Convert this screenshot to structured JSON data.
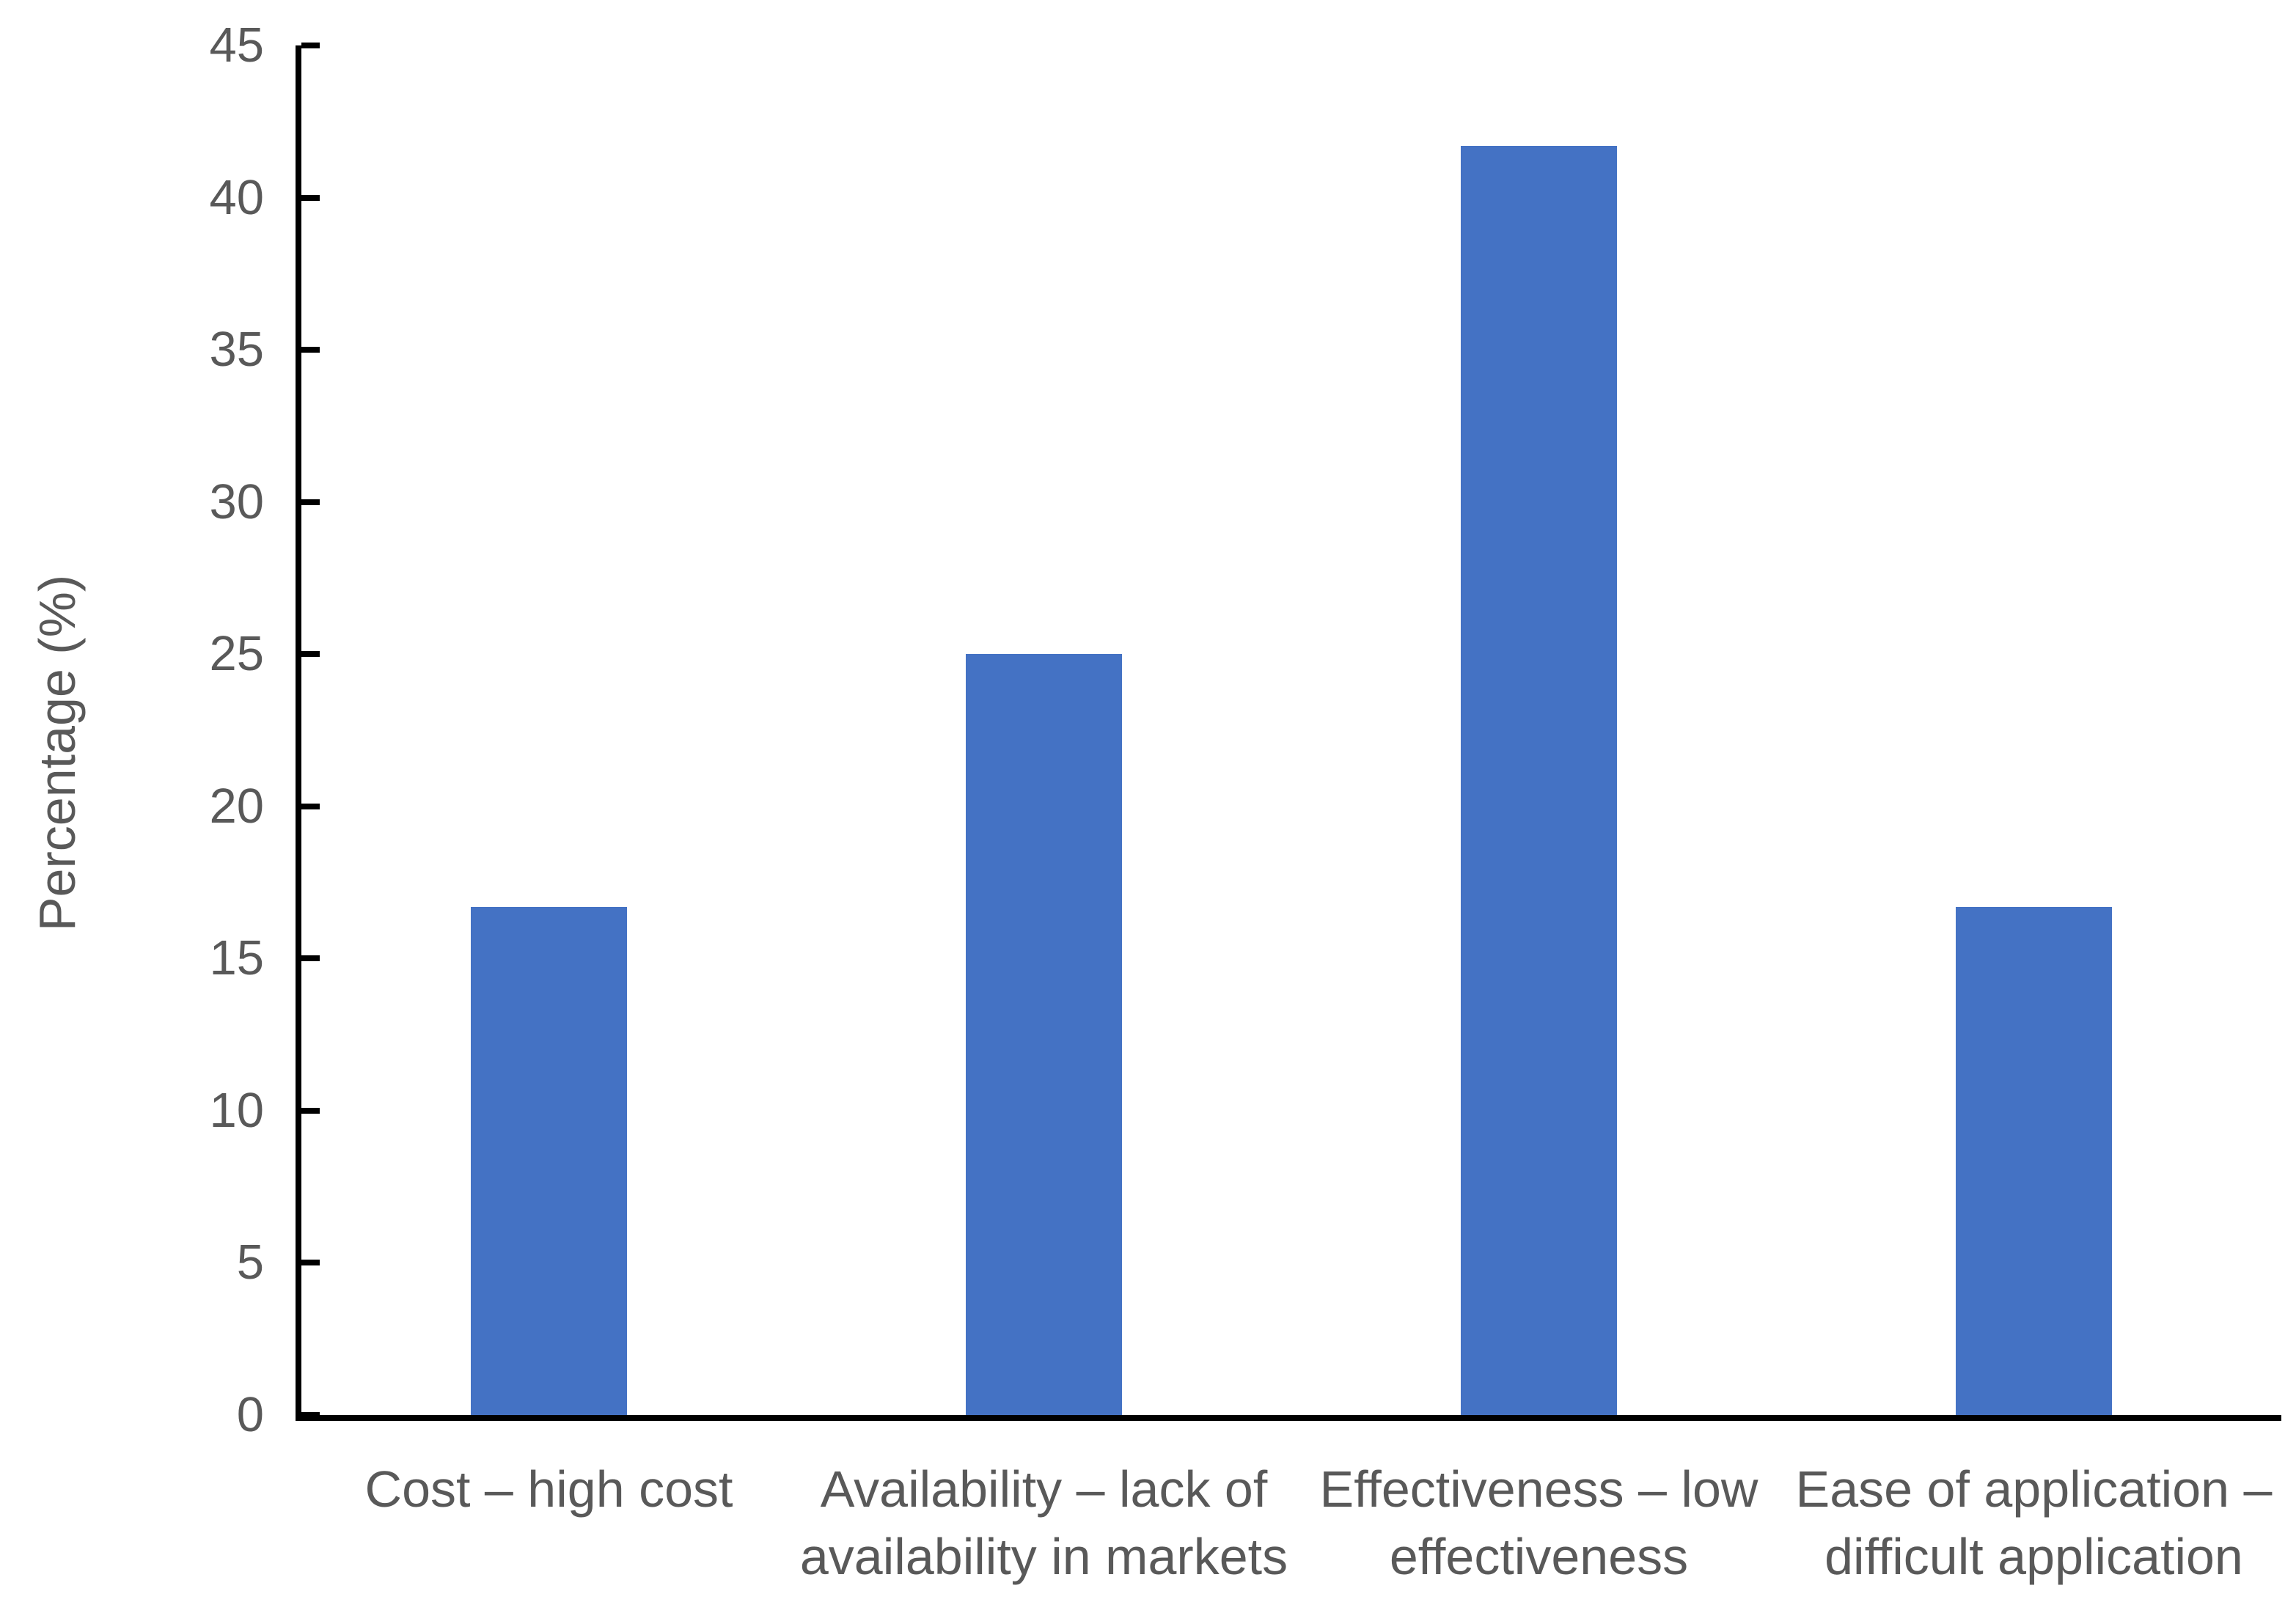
{
  "chart_data": {
    "type": "bar",
    "title": "",
    "ylabel": "Percentage (%)",
    "xlabel": "",
    "categories": [
      "Cost – high cost",
      "Availability – lack of\navailability in markets",
      "Effectiveness – low\neffectiveness",
      "Ease of application –\ndifficult application"
    ],
    "values": [
      16.7,
      25,
      41.7,
      16.7
    ],
    "ylim": [
      0,
      45
    ],
    "ytick_step": 5,
    "yticks": [
      0,
      5,
      10,
      15,
      20,
      25,
      30,
      35,
      40,
      45
    ],
    "grid": false,
    "legend": false,
    "colors": {
      "bar": "#4472C4",
      "axis": "#000000",
      "labels": "#595959"
    }
  }
}
